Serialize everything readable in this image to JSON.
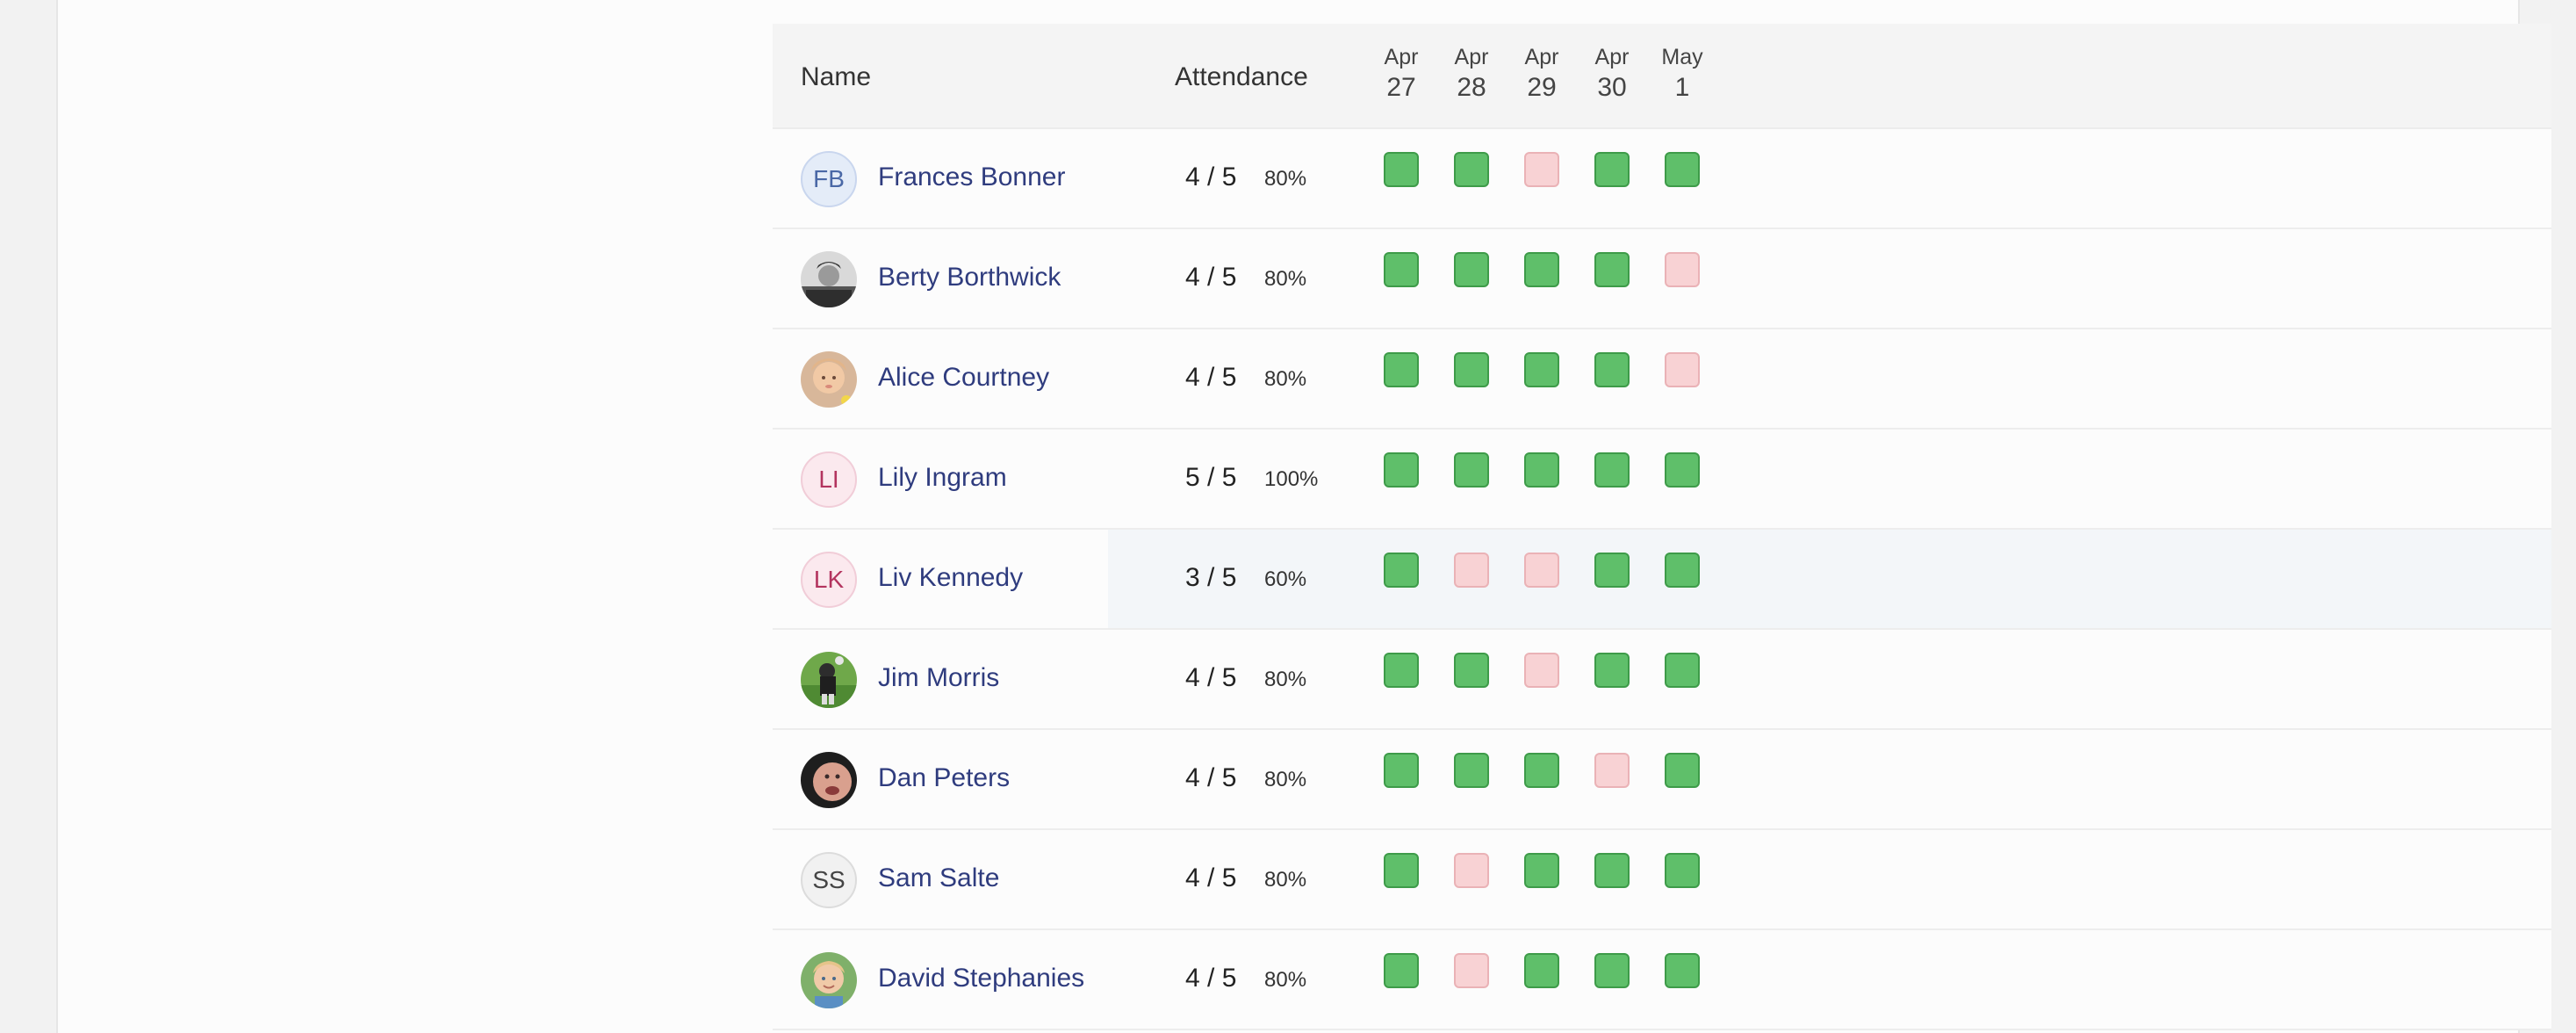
{
  "header": {
    "name_label": "Name",
    "attendance_label": "Attendance",
    "dates": [
      {
        "month": "Apr",
        "day": "27"
      },
      {
        "month": "Apr",
        "day": "28"
      },
      {
        "month": "Apr",
        "day": "29"
      },
      {
        "month": "Apr",
        "day": "30"
      },
      {
        "month": "May",
        "day": "1"
      }
    ]
  },
  "colors": {
    "present": "#5fbf6a",
    "absent": "#f8d2d4",
    "name_link": "#2f3c7e",
    "row_highlight": "#f3f6f9"
  },
  "rows": [
    {
      "name": "Frances Bonner",
      "initials": "FB",
      "avatar": "initials-blue",
      "fraction": "4 / 5",
      "percent": "80%",
      "days": [
        "present",
        "present",
        "absent",
        "present",
        "present"
      ]
    },
    {
      "name": "Berty Borthwick",
      "initials": "",
      "avatar": "photo",
      "fraction": "4 / 5",
      "percent": "80%",
      "days": [
        "present",
        "present",
        "present",
        "present",
        "absent"
      ]
    },
    {
      "name": "Alice Courtney",
      "initials": "",
      "avatar": "photo",
      "fraction": "4 / 5",
      "percent": "80%",
      "days": [
        "present",
        "present",
        "present",
        "present",
        "absent"
      ]
    },
    {
      "name": "Lily Ingram",
      "initials": "LI",
      "avatar": "initials-pink",
      "fraction": "5 / 5",
      "percent": "100%",
      "days": [
        "present",
        "present",
        "present",
        "present",
        "present"
      ]
    },
    {
      "name": "Liv Kennedy",
      "initials": "LK",
      "avatar": "initials-pink",
      "fraction": "3 / 5",
      "percent": "60%",
      "days": [
        "present",
        "absent",
        "absent",
        "present",
        "present"
      ],
      "highlighted": true
    },
    {
      "name": "Jim Morris",
      "initials": "",
      "avatar": "photo",
      "fraction": "4 / 5",
      "percent": "80%",
      "days": [
        "present",
        "present",
        "absent",
        "present",
        "present"
      ]
    },
    {
      "name": "Dan Peters",
      "initials": "",
      "avatar": "photo",
      "fraction": "4 / 5",
      "percent": "80%",
      "days": [
        "present",
        "present",
        "present",
        "absent",
        "present"
      ]
    },
    {
      "name": "Sam Salte",
      "initials": "SS",
      "avatar": "initials-grey",
      "fraction": "4 / 5",
      "percent": "80%",
      "days": [
        "present",
        "absent",
        "present",
        "present",
        "present"
      ]
    },
    {
      "name": "David Stephanies",
      "initials": "",
      "avatar": "photo",
      "fraction": "4 / 5",
      "percent": "80%",
      "days": [
        "present",
        "absent",
        "present",
        "present",
        "present"
      ]
    }
  ]
}
